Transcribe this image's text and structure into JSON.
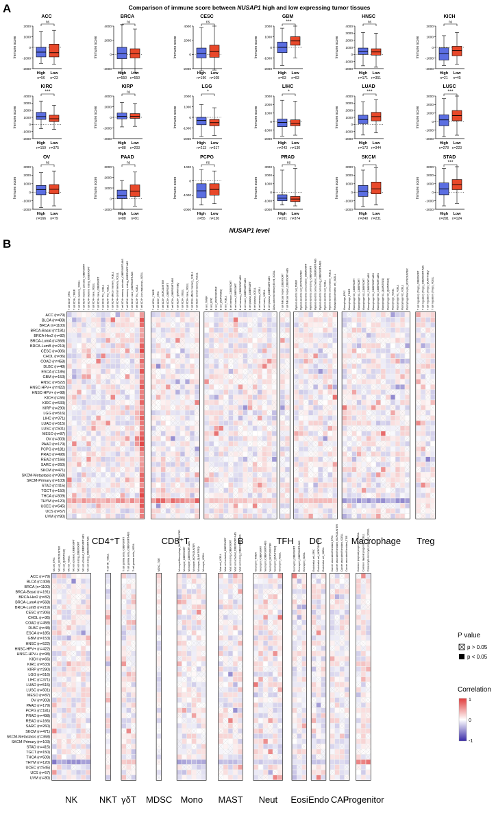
{
  "panel_a": {
    "letter": "A",
    "title_prefix": "Comparison of immune score between ",
    "title_gene": "NUSAP1",
    "title_suffix": " high and low expressing tumor tissues",
    "xlabel": "NUSAP1 level",
    "ylabel": "Immune score",
    "colors": {
      "high": "#5b6ee1",
      "low": "#e8482a"
    },
    "chart_data": {
      "type": "box",
      "groups": [
        "High",
        "Low"
      ],
      "panels": [
        {
          "name": "ACC",
          "sig": "ns",
          "yticks": [
            2000,
            1000,
            0,
            -1000,
            -2000
          ],
          "n_high": "n=56",
          "n_low": "n=23",
          "high": {
            "min": -1500,
            "q1": -900,
            "med": -450,
            "q3": 0,
            "max": 1500
          },
          "low": {
            "min": -1600,
            "q1": -900,
            "med": -500,
            "q3": 300,
            "max": 1600
          }
        },
        {
          "name": "BRCA",
          "sig": "ns",
          "yticks": [
            4000,
            2000,
            0,
            -2000
          ],
          "n_high": "n=550",
          "n_low": "n=550",
          "high": {
            "min": -2600,
            "q1": -600,
            "med": 150,
            "q3": 1000,
            "max": 4200
          },
          "low": {
            "min": -2500,
            "q1": -500,
            "med": 100,
            "q3": 800,
            "max": 3600
          }
        },
        {
          "name": "CESC",
          "sig": "ns",
          "yticks": [
            4000,
            2000,
            0,
            -2000
          ],
          "n_high": "n=196",
          "n_low": "n=108",
          "high": {
            "min": -2300,
            "q1": -500,
            "med": 150,
            "q3": 900,
            "max": 3800
          },
          "low": {
            "min": -2200,
            "q1": -400,
            "med": 400,
            "q3": 1300,
            "max": 4000
          }
        },
        {
          "name": "GBM",
          "sig": "***",
          "yticks": [
            2000,
            1000,
            0,
            -1000,
            -2000
          ],
          "n_high": "n=83",
          "n_low": "n=83",
          "high": {
            "min": -1700,
            "q1": -500,
            "med": 0,
            "q3": 500,
            "max": 1800
          },
          "low": {
            "min": -1000,
            "q1": 200,
            "med": 600,
            "q3": 1000,
            "max": 2000
          }
        },
        {
          "name": "HNSC",
          "sig": "ns",
          "yticks": [
            4000,
            3000,
            2000,
            1000,
            0,
            -1000,
            -2000
          ],
          "n_high": "n=171",
          "n_low": "n=351",
          "high": {
            "min": -1600,
            "q1": 0,
            "med": 400,
            "q3": 900,
            "max": 3100
          },
          "low": {
            "min": -1800,
            "q1": -100,
            "med": 350,
            "q3": 800,
            "max": 3000
          }
        },
        {
          "name": "KICH",
          "sig": "ns",
          "yticks": [
            2000,
            1000,
            0,
            -1000,
            -2000
          ],
          "n_high": "n=21",
          "n_low": "n=45",
          "high": {
            "min": -1700,
            "q1": -1200,
            "med": -600,
            "q3": -50,
            "max": 1100
          },
          "low": {
            "min": -1600,
            "q1": -800,
            "med": -300,
            "q3": 100,
            "max": 1400
          }
        },
        {
          "name": "KIRC",
          "sig": "***",
          "yticks": [
            4000,
            3000,
            2000,
            1000,
            0,
            -1000,
            -2000
          ],
          "n_high": "n=159",
          "n_low": "n=375",
          "high": {
            "min": -600,
            "q1": 700,
            "med": 1100,
            "q3": 1700,
            "max": 3300
          },
          "low": {
            "min": -700,
            "q1": 400,
            "med": 800,
            "q3": 1300,
            "max": 2700
          }
        },
        {
          "name": "KIRP",
          "sig": "ns",
          "yticks": [
            4000,
            2000,
            0,
            -2000,
            -4000
          ],
          "n_high": "n=88",
          "n_low": "n=203",
          "high": {
            "min": -1800,
            "q1": -300,
            "med": 200,
            "q3": 800,
            "max": 2800
          },
          "low": {
            "min": -1700,
            "q1": -200,
            "med": 200,
            "q3": 700,
            "max": 2600
          }
        },
        {
          "name": "LGG",
          "sig": "*",
          "yticks": [
            2000,
            1000,
            0,
            -1000,
            -2000
          ],
          "n_high": "n=213",
          "n_low": "n=317",
          "high": {
            "min": -1800,
            "q1": -700,
            "med": -300,
            "q3": 0,
            "max": 1200
          },
          "low": {
            "min": -1700,
            "q1": -800,
            "med": -500,
            "q3": -200,
            "max": 900
          }
        },
        {
          "name": "LIHC",
          "sig": "*",
          "yticks": [
            3000,
            2000,
            1000,
            0,
            -1000,
            -2000
          ],
          "n_high": "n=243",
          "n_low": "n=130",
          "high": {
            "min": -1700,
            "q1": -600,
            "med": -100,
            "q3": 300,
            "max": 2500
          },
          "low": {
            "min": -1600,
            "q1": -500,
            "med": -200,
            "q3": 200,
            "max": 2400
          }
        },
        {
          "name": "LUAD",
          "sig": "***",
          "yticks": [
            4000,
            3000,
            2000,
            1000,
            0,
            -1000,
            -2000
          ],
          "n_high": "n=173",
          "n_low": "n=344",
          "high": {
            "min": -1500,
            "q1": 100,
            "med": 700,
            "q3": 1300,
            "max": 3200
          },
          "low": {
            "min": -1200,
            "q1": 500,
            "med": 1100,
            "q3": 1700,
            "max": 3500
          }
        },
        {
          "name": "LUSC",
          "sig": "***",
          "yticks": [
            3000,
            2000,
            1000,
            0,
            -1000,
            -2000
          ],
          "n_high": "n=278",
          "n_low": "n=223",
          "high": {
            "min": -1800,
            "q1": -500,
            "med": 200,
            "q3": 800,
            "max": 2700
          },
          "low": {
            "min": -1600,
            "q1": 100,
            "med": 700,
            "q3": 1300,
            "max": 3000
          }
        },
        {
          "name": "OV",
          "sig": "ns",
          "yticks": [
            3000,
            2000,
            1000,
            0,
            -1000,
            -2000
          ],
          "n_high": "n=166",
          "n_low": "n=79",
          "high": {
            "min": -1800,
            "q1": -300,
            "med": 300,
            "q3": 800,
            "max": 2300
          },
          "low": {
            "min": -1600,
            "q1": -200,
            "med": 350,
            "q3": 900,
            "max": 2500
          }
        },
        {
          "name": "PAAD",
          "sig": "ns",
          "yticks": [
            3000,
            2000,
            1000,
            0,
            -1000
          ],
          "n_high": "n=88",
          "n_low": "n=91",
          "high": {
            "min": -1000,
            "q1": 0,
            "med": 300,
            "q3": 800,
            "max": 1700
          },
          "low": {
            "min": -700,
            "q1": 200,
            "med": 700,
            "q3": 1300,
            "max": 2500
          }
        },
        {
          "name": "PCPG",
          "sig": "ns",
          "yticks": [
            1000,
            0,
            -1000,
            -2000
          ],
          "n_high": "n=55",
          "n_low": "n=126",
          "high": {
            "min": -1700,
            "q1": -1200,
            "med": -700,
            "q3": -200,
            "max": 800
          },
          "low": {
            "min": -1600,
            "q1": -1000,
            "med": -600,
            "q3": -200,
            "max": 700
          }
        },
        {
          "name": "PRAD",
          "sig": "ns",
          "yticks": [
            3000,
            2000,
            1000,
            0,
            -1000,
            -2000
          ],
          "n_high": "n=101",
          "n_low": "n=374",
          "high": {
            "min": -1500,
            "q1": -1000,
            "med": -700,
            "q3": -300,
            "max": 2600
          },
          "low": {
            "min": -1600,
            "q1": -1100,
            "med": -800,
            "q3": -500,
            "max": 2800
          }
        },
        {
          "name": "SKCM",
          "sig": "*",
          "yticks": [
            3000,
            2000,
            1000,
            0,
            -1000,
            -2000
          ],
          "n_high": "n=240",
          "n_low": "n=231",
          "high": {
            "min": -1700,
            "q1": -500,
            "med": 100,
            "q3": 800,
            "max": 2600
          },
          "low": {
            "min": -1500,
            "q1": -200,
            "med": 400,
            "q3": 1200,
            "max": 2900
          }
        },
        {
          "name": "STAD",
          "sig": "***",
          "yticks": [
            3000,
            2000,
            1000,
            0,
            -1000,
            -2000
          ],
          "n_high": "n=291",
          "n_low": "n=124",
          "high": {
            "min": -1600,
            "q1": -300,
            "med": 400,
            "q3": 1100,
            "max": 2800
          },
          "low": {
            "min": -1300,
            "q1": 300,
            "med": 900,
            "q3": 1500,
            "max": 3000
          }
        }
      ]
    }
  },
  "panel_b": {
    "letter": "B",
    "chart_data": {
      "type": "heatmap",
      "value_range": [
        -1,
        1
      ],
      "rows": [
        "ACC (n=79)",
        "BLCA (n=408)",
        "BRCA (n=1100)",
        "BRCA-Basal (n=191)",
        "BRCA-Her2 (n=82)",
        "BRCA-LumA (n=568)",
        "BRCA-LumB (n=219)",
        "CESC (n=306)",
        "CHOL (n=36)",
        "COAD (n=458)",
        "DLBC (n=48)",
        "ESCA (n=185)",
        "GBM (n=153)",
        "HNSC (n=522)",
        "HNSC-HPV+ (n=422)",
        "HNSC-HPV+ (n=98)",
        "KICH (n=66)",
        "KIRC (n=533)",
        "KIRP (n=290)",
        "LGG (n=516)",
        "LIHC (n=371)",
        "LUAD (n=515)",
        "LUSC (n=501)",
        "MESO (n=87)",
        "OV (n=303)",
        "PAAD (n=179)",
        "PCPG (n=181)",
        "PRAD (n=498)",
        "READ (n=166)",
        "SARC (n=260)",
        "SKCM (n=471)",
        "SKCM-Metastasis (n=368)",
        "SKCM-Primary (n=103)",
        "STAD (n=415)",
        "TGCT (n=150)",
        "THCA (n=509)",
        "THYM (n=120)",
        "UCEC (n=545)",
        "UCS (n=57)",
        "UVM (n=80)"
      ],
      "rows_bottom": [
        "ACC (n=79)",
        "BLCA (n=408)",
        "BRCA (n=1100)",
        "BRCA-Basal (n=191)",
        "BRCA-Her2 (n=82)",
        "BRCA-LumA (n=568)",
        "BRCA-LumB (n=219)",
        "CESC (n=306)",
        "CHOL (n=36)",
        "COAD (n=458)",
        "DLBC (n=48)",
        "ESCA (n=185)",
        "GBM (n=153)",
        "HNSC (n=522)",
        "HNSC-HPV+ (n=422)",
        "HNSC-HPV+ (n=98)",
        "KICH (n=66)",
        "KIRC (n=533)",
        "KIRP (n=290)",
        "LGG (n=516)",
        "LIHC (n=371)",
        "LUAD (n=515)",
        "LUSC (n=501)",
        "MESO (n=87)",
        "OV (n=303)",
        "PAAD (n=179)",
        "PCPG (n=181)",
        "PRAD (n=498)",
        "READ (n=166)",
        "SARC (n=260)",
        "SKCM (n=471)",
        "SKCM-Metastasis (n=368)",
        "SKCM-Primary (n=103)",
        "STAD (n=415)",
        "TGCT (n=150)",
        "THCA (n=509)",
        "THYM (n=120)",
        "UCEC (n=545)",
        "UCS (n=57)",
        "UVM (n=80)"
      ],
      "groups_top": [
        {
          "name": "CD4⁺T",
          "columns": [
            "T cell CD4+_EPIC",
            "T cell CD4+_TIMER",
            "T cell CD4+ memory_XCELL",
            "T cell CD4+ memory activated_CIBERSORT",
            "T cell CD4+ memory resting_CIBERSORT",
            "T cell CD4+ naive_XCELL",
            "T cell CD4+ naive_CIBERSORT",
            "T cell CD4+ Th1_XCELL",
            "T cell CD4+ Th2_XCELL",
            "T cell CD4+ effector memory_XCELL",
            "T cell CD4+ central memory_XCELL",
            "T cell CD4+ memory activated_CIBERSORT-ABS",
            "T cell CD4+ memory resting_CIBERSORT-ABS",
            "T cell CD4+ naive_CIBERSORT-ABS",
            "T cell CD4+ Th1_XCELL",
            "T cell CD4+ (non-regulatory)_XCELL"
          ]
        },
        {
          "name": "CD8⁺T",
          "columns": [
            "T cell CD8+_TIMER",
            "T cell CD8+_EPIC",
            "T cell CD8+_MCPCOUNTER",
            "T cell CD8+_CIBERSORT",
            "T cell CD8+_CIBERSORT-ABS",
            "T cell CD8+_QUANTISEQ",
            "T cell CD8+_XCELL",
            "T cell CD8+ naive_XCELL",
            "T cell CD8+ effector memory_XCELL",
            "T cell CD8+ central memory_XCELL"
          ]
        },
        {
          "name": "B",
          "columns": [
            "B cell_TIMER",
            "B cell_EPIC",
            "B cell_MCPCOUNTER",
            "B cell_QUANTISEQ",
            "B cell_XCELL",
            "B cell memory_CIBERSORT",
            "B cell naive_CIBERSORT",
            "B cell memory_CIBERSORT-ABS",
            "B cell naive_CIBERSORT-ABS",
            "B cell plasma_CIBERSORT",
            "B cell plasma_XCELL",
            "B cell memory_XCELL",
            "B cell naive_XCELL",
            "B cell plasma_CIBERSORT-ABS",
            "Class-switched memory B cell_XCELL"
          ]
        },
        {
          "name": "TFH",
          "columns": [
            "T cell follicular helper_CIBERSORT",
            "T cell follicular helper_CIBERSORT-ABS"
          ]
        },
        {
          "name": "DC",
          "columns": [
            "Myeloid dendritic cell_TIMER",
            "Myeloid dendritic cell_MCPCOUNTER",
            "Myeloid dendritic cell activated_CIBERSORT",
            "Myeloid dendritic cell resting_CIBERSORT",
            "Myeloid dendritic cell activated_CIBERSORT-ABS",
            "Myeloid dendritic cell resting_CIBERSORT-ABS",
            "Myeloid dendritic cell_XCELL",
            "Myeloid dendritic cell activated_XCELL",
            "Plasmacytoid dendritic cell_XCELL"
          ]
        },
        {
          "name": "Macrophage",
          "columns": [
            "Macrophage_EPIC",
            "Macrophage_TIMER",
            "Macrophage M0_CIBERSORT",
            "Macrophage M1_CIBERSORT",
            "Macrophage M2_CIBERSORT",
            "Macrophage M0_CIBERSORT-ABS",
            "Macrophage M1_CIBERSORT-ABS",
            "Macrophage M2_CIBERSORT-ABS",
            "Macrophage M1_QUANTISEQ",
            "Macrophage M2_QUANTISEQ",
            "Macrophage_XCELL",
            "Macrophage M1_XCELL",
            "Macrophage M2_XCELL",
            "Macrophage/Monocyte_MCPCOUNTER"
          ]
        },
        {
          "name": "Treg",
          "columns": [
            "T cell regulatory (Tregs)_CIBERSORT",
            "T cell regulatory (Tregs)_CIBERSORT-ABS",
            "T cell regulatory (Tregs)_QUANTISEQ",
            "T cell regulatory (Tregs)_XCELL"
          ]
        }
      ],
      "groups_bottom": [
        {
          "name": "NK",
          "columns": [
            "NK cell_EPIC",
            "NK cell_MCPCOUNTER",
            "NK cell_QUANTISEQ",
            "NK cell_XCELL",
            "NK cell activated_CIBERSORT",
            "NK cell resting_CIBERSORT",
            "NK cell activated_CIBERSORT-ABS",
            "NK cell resting_CIBERSORT-ABS"
          ]
        },
        {
          "name": "NKT",
          "columns": [
            "T cell NK_XCELL"
          ]
        },
        {
          "name": "γδT",
          "columns": [
            "T cell gamma delta_CIBERSORT",
            "T cell gamma delta_CIBERSORT-ABS",
            "T cell gamma delta_XCELL"
          ]
        },
        {
          "name": "MDSC",
          "columns": [
            "MDSC_TIDE"
          ]
        },
        {
          "name": "Mono",
          "columns": [
            "Monocyte/Macrophage_MCPCOUNTER",
            "Monocyte_CIBERSORT",
            "Monocyte_CIBERSORT-ABS",
            "Monocyte_MCPCOUNTER",
            "Monocyte_QUANTISEQ",
            "Monocyte_XCELL"
          ]
        },
        {
          "name": "MAST",
          "columns": [
            "Mast cell_XCELL",
            "Mast cell activated_CIBERSORT",
            "Mast cell resting_CIBERSORT",
            "Mast cell activated_CIBERSORT-ABS",
            "Mast cell resting_CIBERSORT-ABS"
          ]
        },
        {
          "name": "Neut",
          "columns": [
            "Neutrophil_TIMER",
            "Neutrophil_CIBERSORT",
            "Neutrophil_CIBERSORT-ABS",
            "Neutrophil_MCPCOUNTER",
            "Neutrophil_QUANTISEQ",
            "Neutrophil_XCELL"
          ]
        },
        {
          "name": "Eosi",
          "columns": [
            "Eosinophil_CIBERSORT",
            "Eosinophil_CIBERSORT-ABS",
            "Eosinophil_XCELL"
          ]
        },
        {
          "name": "Endo",
          "columns": [
            "Endothelial cell_EPIC",
            "Endothelial cell_MCPCOUNTER",
            "Endothelial cell_XCELL"
          ]
        },
        {
          "name": "CAF",
          "columns": [
            "Cancer associated fibroblast_EPIC",
            "Cancer associated fibroblast_MCPCOUNTER",
            "Cancer associated fibroblast_XCELL",
            "Cancer associated fibroblast_TIDE"
          ]
        },
        {
          "name": "Progenitor",
          "columns": [
            "Common lymphoid progenitor_XCELL",
            "Common myeloid progenitor_XCELL",
            "Granulocyte-monocyte progenitor_XCELL"
          ]
        }
      ],
      "notable_rows": {
        "THYM (n=120)": "strong positive (CD4+T, CD8+T) / negative (Macrophage, NK, Mono)"
      },
      "notable_columns": {
        "T cell CD4+ Th2_XCELL": "strong positive across most tumors"
      }
    },
    "legend": {
      "pvalue_title": "P value",
      "pvalue_ns": "p > 0.05",
      "pvalue_sig": "p < 0.05",
      "corr_title": "Correlation",
      "corr_ticks": [
        "1",
        "0",
        "-1"
      ],
      "colors": {
        "pos": "#e03c3c",
        "neg": "#3a2ba8",
        "zero": "#ffffff"
      }
    }
  }
}
